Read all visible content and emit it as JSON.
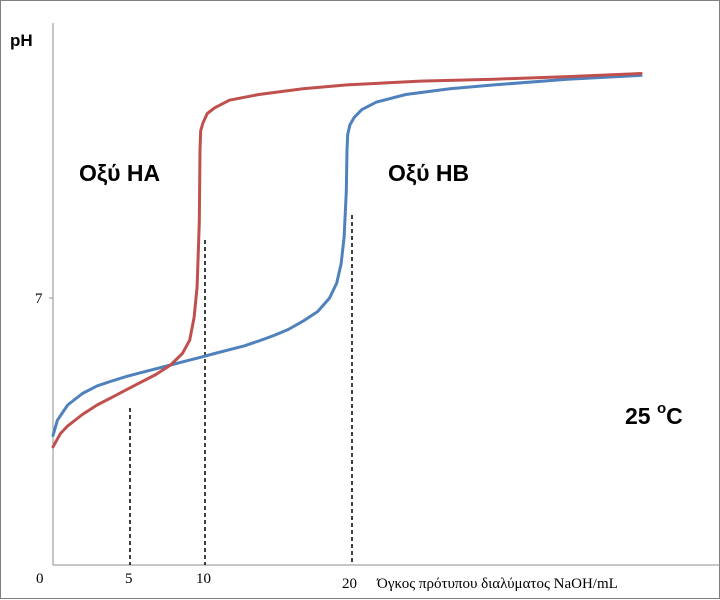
{
  "chart_data": {
    "type": "line",
    "ylabel": "pH",
    "xlabel": "Όγκος πρότυπου διαλύματος NaOH/mL",
    "x_ticks": [
      "0",
      "5",
      "10",
      "20"
    ],
    "y_ticks": [
      "7"
    ],
    "xlim": [
      0,
      40
    ],
    "ylim": [
      0,
      14
    ],
    "temperature": {
      "value": "25 ",
      "unit": "oC",
      "unit_sup": "o",
      "unit_main": "C"
    },
    "series": [
      {
        "name": "Οξύ ΗΑ",
        "color": "#c0504d",
        "equivalence_volume": 10,
        "half_equivalence_volume": 5,
        "x": [
          0,
          0.5,
          1,
          2,
          3,
          4,
          5,
          6,
          7,
          8,
          8.8,
          9.3,
          9.6,
          9.8,
          9.95,
          10,
          10.05,
          10.2,
          10.5,
          11,
          12,
          14,
          17,
          20,
          25,
          30,
          35,
          40
        ],
        "y": [
          3.1,
          3.45,
          3.65,
          3.95,
          4.2,
          4.4,
          4.6,
          4.8,
          5.0,
          5.25,
          5.55,
          5.9,
          6.5,
          7.3,
          9.0,
          10.9,
          11.4,
          11.6,
          11.85,
          12.0,
          12.2,
          12.35,
          12.5,
          12.6,
          12.7,
          12.75,
          12.82,
          12.9
        ]
      },
      {
        "name": "Οξύ ΗΒ",
        "color": "#4f81bd",
        "equivalence_volume": 20,
        "half_equivalence_volume": 10,
        "x": [
          0,
          0.3,
          1,
          2,
          3,
          4,
          5,
          6,
          7,
          8,
          9,
          10,
          11,
          12,
          13,
          14,
          15,
          16,
          17,
          18,
          18.8,
          19.3,
          19.6,
          19.8,
          19.95,
          20,
          20.05,
          20.2,
          20.5,
          21,
          22,
          24,
          27,
          30,
          35,
          40
        ],
        "y": [
          3.4,
          3.8,
          4.2,
          4.5,
          4.7,
          4.83,
          4.95,
          5.05,
          5.15,
          5.25,
          5.35,
          5.45,
          5.55,
          5.65,
          5.75,
          5.88,
          6.02,
          6.18,
          6.4,
          6.65,
          7.0,
          7.4,
          7.9,
          8.6,
          9.8,
          10.9,
          11.3,
          11.55,
          11.75,
          11.95,
          12.15,
          12.35,
          12.5,
          12.6,
          12.75,
          12.85
        ]
      }
    ]
  }
}
